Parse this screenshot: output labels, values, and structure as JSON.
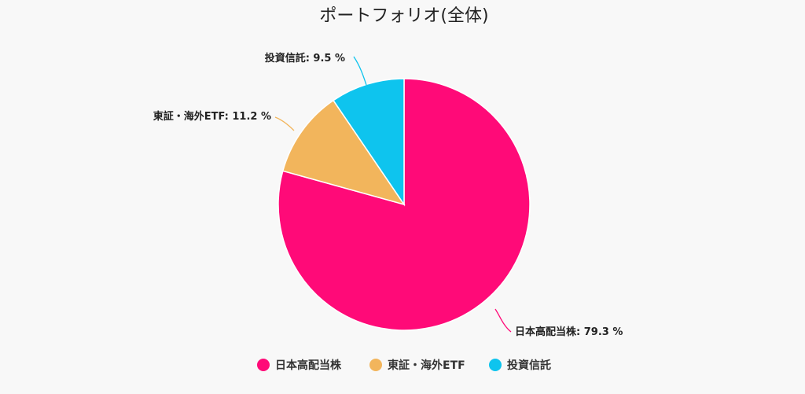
{
  "chart_data": {
    "type": "pie",
    "title": "ポートフォリオ(全体)",
    "slices": [
      {
        "label": "日本高配当株",
        "value": 79.3,
        "color": "#ff0a78",
        "data_label": "日本高配当株: 79.3 %"
      },
      {
        "label": "東証・海外ETF",
        "value": 11.2,
        "color": "#f2b55c",
        "data_label": "東証・海外ETF: 11.2 %"
      },
      {
        "label": "投資信託",
        "value": 9.5,
        "color": "#0ec4ee",
        "data_label": "投資信託: 9.5 %"
      }
    ],
    "start_angle": "12 o'clock",
    "direction": "clockwise",
    "legend_position": "bottom"
  }
}
